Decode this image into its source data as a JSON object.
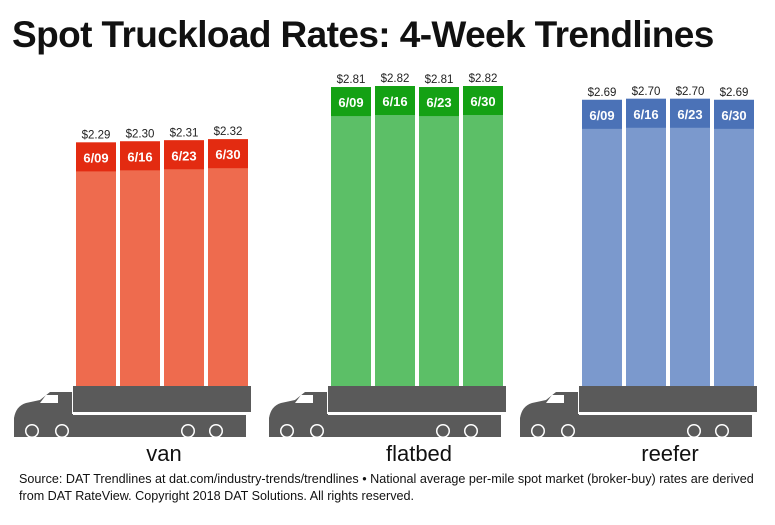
{
  "chart_data": {
    "type": "bar",
    "title": "Spot Truckload Rates: 4-Week Trendlines",
    "unit": "$ per mile",
    "categories": [
      "6/09",
      "6/16",
      "6/23",
      "6/30"
    ],
    "groups": [
      {
        "name": "van",
        "values": [
          2.29,
          2.3,
          2.31,
          2.32
        ],
        "labels": [
          "$2.29",
          "$2.30",
          "$2.31",
          "$2.32"
        ],
        "body_color": "#ee6b4e",
        "cap_color": "#e32b11"
      },
      {
        "name": "flatbed",
        "values": [
          2.81,
          2.82,
          2.81,
          2.82
        ],
        "labels": [
          "$2.81",
          "$2.82",
          "$2.81",
          "$2.82"
        ],
        "body_color": "#5cbf67",
        "cap_color": "#14a114"
      },
      {
        "name": "reefer",
        "values": [
          2.69,
          2.7,
          2.7,
          2.69
        ],
        "labels": [
          "$2.69",
          "$2.70",
          "$2.70",
          "$2.69"
        ],
        "body_color": "#7b99cd",
        "cap_color": "#4b72b7"
      }
    ],
    "truck_color": "#5a5a5a",
    "truck_icon": "semi-truck-icon"
  },
  "source": "Source: DAT Trendlines at dat.com/industry-trends/trendlines • National average per-mile spot market (broker-buy) rates are derived from DAT RateView. Copyright 2018 DAT Solutions. All rights reserved."
}
